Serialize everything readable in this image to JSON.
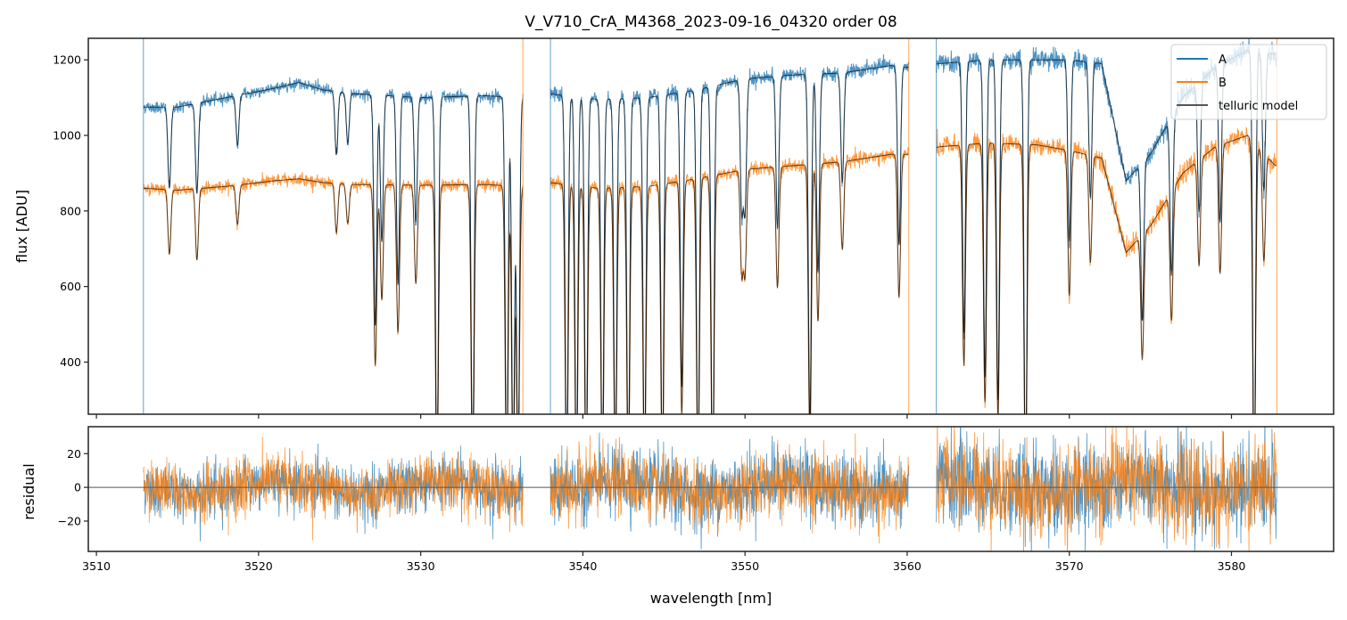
{
  "chart_data": [
    {
      "panel": "top",
      "type": "line",
      "title": "V_V710_CrA_M4368_2023-09-16_04320  order 08",
      "xlabel": "",
      "ylabel": "flux [ADU]",
      "xlim": [
        3509.5,
        3586.3
      ],
      "ylim": [
        262,
        1257
      ],
      "yticks": [
        400,
        600,
        800,
        1000,
        1200
      ],
      "yticklabels": [
        "400",
        "600",
        "800",
        "1000",
        "1200"
      ],
      "xticks": [
        3510,
        3520,
        3530,
        3540,
        3550,
        3560,
        3570,
        3580
      ],
      "grid": false,
      "legend": {
        "placement": "upper-right",
        "entries": [
          "A",
          "B",
          "telluric model"
        ]
      },
      "segments": [
        {
          "name": "seg1",
          "x_range": [
            3512.9,
            3536.3
          ]
        },
        {
          "name": "seg2",
          "x_range": [
            3538.0,
            3560.1
          ]
        },
        {
          "name": "seg3",
          "x_range": [
            3561.8,
            3582.8
          ]
        }
      ],
      "series": [
        {
          "name": "A",
          "color": "#1f77b4",
          "continuum_x": [
            3513.0,
            3515.0,
            3518.0,
            3521.0,
            3522.5,
            3524.0,
            3526.0,
            3530.0,
            3534.0,
            3536.0,
            3538.0,
            3541.0,
            3544.0,
            3547.0,
            3550.0,
            3553.0,
            3556.0,
            3559.0,
            3560.0,
            3562.0,
            3565.0,
            3568.0,
            3570.0,
            3572.0,
            3573.5,
            3575.0,
            3577.0,
            3579.0,
            3581.0,
            3582.7
          ],
          "continuum_y": [
            1075,
            1075,
            1100,
            1125,
            1140,
            1120,
            1110,
            1100,
            1105,
            1100,
            1110,
            1095,
            1100,
            1120,
            1150,
            1160,
            1165,
            1185,
            1180,
            1190,
            1200,
            1200,
            1200,
            1190,
            880,
            950,
            1100,
            1180,
            1225,
            1215
          ]
        },
        {
          "name": "B",
          "color": "#ff7f0e",
          "continuum_x": [
            3513.0,
            3515.0,
            3518.0,
            3521.0,
            3522.5,
            3524.0,
            3526.0,
            3530.0,
            3534.0,
            3536.0,
            3538.0,
            3541.0,
            3544.0,
            3547.0,
            3550.0,
            3553.0,
            3556.0,
            3559.0,
            3560.0,
            3562.0,
            3565.0,
            3568.0,
            3570.0,
            3572.0,
            3573.5,
            3575.0,
            3577.0,
            3579.0,
            3581.0,
            3582.7
          ],
          "continuum_y": [
            860,
            855,
            865,
            880,
            885,
            875,
            870,
            868,
            870,
            865,
            875,
            860,
            865,
            885,
            910,
            920,
            930,
            950,
            950,
            970,
            980,
            975,
            960,
            940,
            690,
            760,
            900,
            970,
            1000,
            920
          ]
        },
        {
          "name": "telluric model",
          "color": "#000000",
          "absorption_lines": [
            {
              "x": 3514.5,
              "depth": 0.2
            },
            {
              "x": 3516.2,
              "depth": 0.22
            },
            {
              "x": 3518.7,
              "depth": 0.12
            },
            {
              "x": 3524.8,
              "depth": 0.15
            },
            {
              "x": 3525.5,
              "depth": 0.12
            },
            {
              "x": 3527.2,
              "depth": 0.55
            },
            {
              "x": 3527.6,
              "depth": 0.35
            },
            {
              "x": 3528.6,
              "depth": 0.45
            },
            {
              "x": 3529.7,
              "depth": 0.3
            },
            {
              "x": 3531.0,
              "depth": 0.9
            },
            {
              "x": 3533.2,
              "depth": 0.9
            },
            {
              "x": 3535.3,
              "depth": 0.9
            },
            {
              "x": 3535.7,
              "depth": 0.9
            },
            {
              "x": 3536.0,
              "depth": 0.9
            },
            {
              "x": 3539.0,
              "depth": 0.9
            },
            {
              "x": 3539.6,
              "depth": 0.9
            },
            {
              "x": 3540.2,
              "depth": 0.9
            },
            {
              "x": 3541.2,
              "depth": 0.9
            },
            {
              "x": 3542.0,
              "depth": 0.9
            },
            {
              "x": 3542.8,
              "depth": 0.9
            },
            {
              "x": 3543.8,
              "depth": 0.9
            },
            {
              "x": 3544.9,
              "depth": 0.9
            },
            {
              "x": 3546.1,
              "depth": 0.7
            },
            {
              "x": 3547.1,
              "depth": 0.9
            },
            {
              "x": 3548.0,
              "depth": 0.95
            },
            {
              "x": 3549.8,
              "depth": 0.3
            },
            {
              "x": 3550.0,
              "depth": 0.3
            },
            {
              "x": 3552.0,
              "depth": 0.35
            },
            {
              "x": 3554.0,
              "depth": 0.8
            },
            {
              "x": 3554.5,
              "depth": 0.45
            },
            {
              "x": 3556.0,
              "depth": 0.25
            },
            {
              "x": 3559.5,
              "depth": 0.4
            },
            {
              "x": 3563.5,
              "depth": 0.6
            },
            {
              "x": 3564.8,
              "depth": 0.7
            },
            {
              "x": 3565.6,
              "depth": 0.75
            },
            {
              "x": 3567.3,
              "depth": 0.95
            },
            {
              "x": 3570.0,
              "depth": 0.4
            },
            {
              "x": 3571.3,
              "depth": 0.3
            },
            {
              "x": 3574.5,
              "depth": 0.45
            },
            {
              "x": 3576.3,
              "depth": 0.4
            },
            {
              "x": 3578.0,
              "depth": 0.3
            },
            {
              "x": 3579.3,
              "depth": 0.35
            },
            {
              "x": 3581.4,
              "depth": 0.95
            },
            {
              "x": 3582.0,
              "depth": 0.3
            }
          ]
        }
      ]
    },
    {
      "panel": "bottom",
      "type": "line",
      "title": "",
      "xlabel": "wavelength [nm]",
      "ylabel": "residual",
      "xlim": [
        3509.5,
        3586.3
      ],
      "ylim": [
        -38,
        36
      ],
      "xticks": [
        3510,
        3520,
        3530,
        3540,
        3550,
        3560,
        3570,
        3580
      ],
      "xticklabels": [
        "3510",
        "3520",
        "3530",
        "3540",
        "3550",
        "3560",
        "3570",
        "3580"
      ],
      "yticks": [
        -20,
        0,
        20
      ],
      "yticklabels": [
        "−20",
        "0",
        "20"
      ],
      "zero_line": 0,
      "series": [
        {
          "name": "A",
          "color": "#1f77b4",
          "noise_sigma_seg1": 9,
          "noise_sigma_seg2": 11,
          "noise_sigma_seg3": 15
        },
        {
          "name": "B",
          "color": "#ff7f0e",
          "noise_sigma_seg1": 9,
          "noise_sigma_seg2": 11,
          "noise_sigma_seg3": 15
        }
      ]
    }
  ]
}
